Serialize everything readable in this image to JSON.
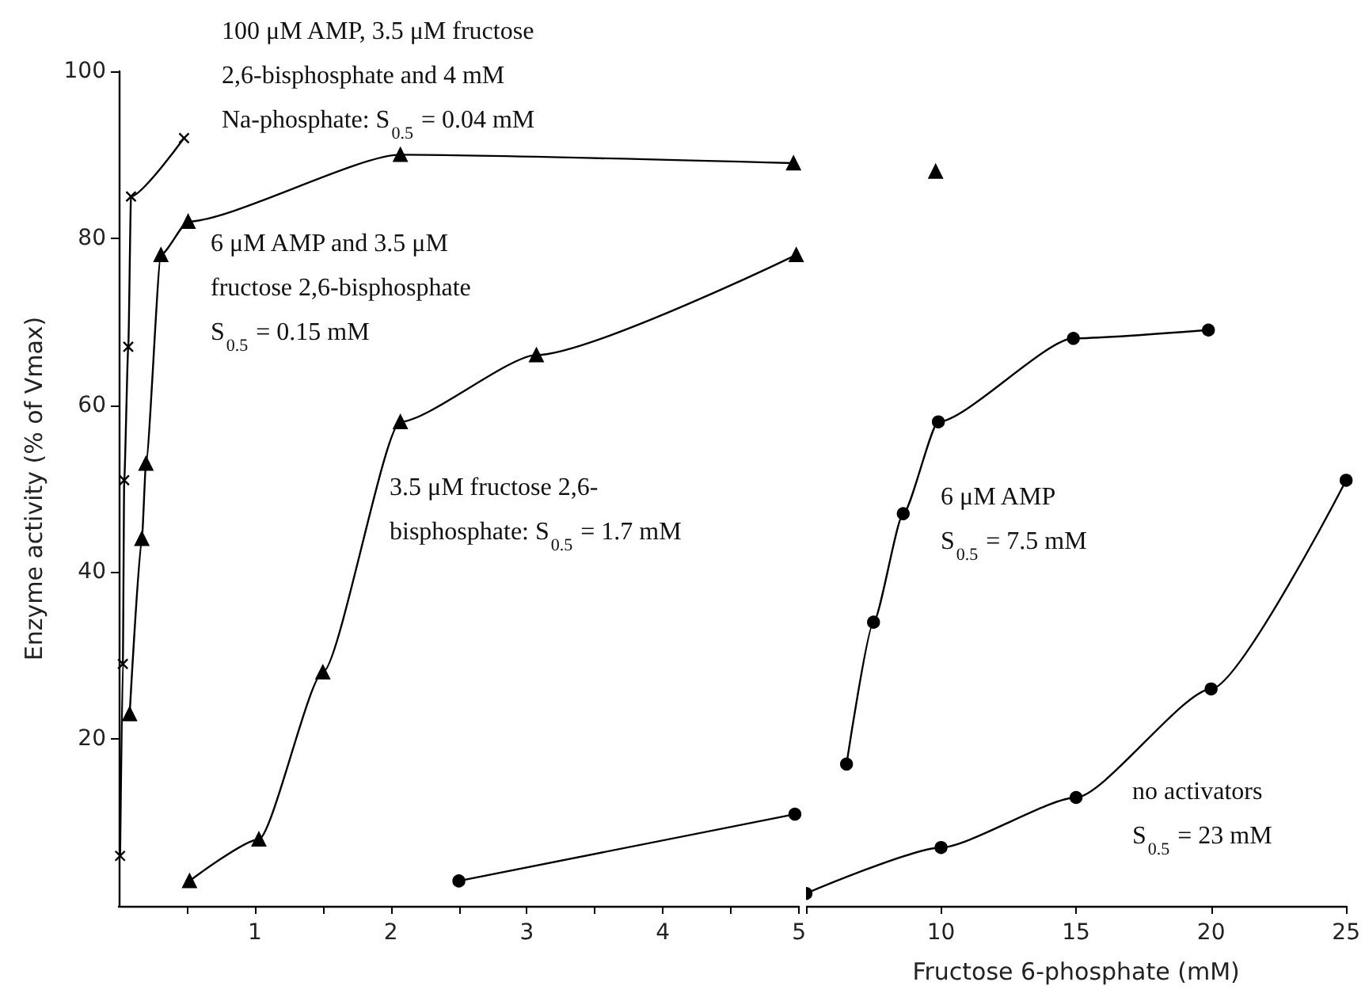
{
  "chart_data": [
    {
      "type": "line",
      "ylabel": "Enzyme activity (% of Vmax)",
      "xlim": [
        0,
        5
      ],
      "ylim": [
        0,
        100
      ],
      "xticks": [
        {
          "value": 0.5,
          "label": null
        },
        1,
        {
          "value": 1.5,
          "label": null
        },
        2,
        {
          "value": 2.5,
          "label": null
        },
        3,
        {
          "value": 3.5,
          "label": null
        },
        4,
        {
          "value": 4.5,
          "label": null
        },
        5
      ],
      "yticks": [
        20,
        40,
        60,
        80,
        100
      ],
      "grid": false,
      "line_style": "solid",
      "series": [
        {
          "color": "#000000",
          "marker": "cross",
          "x": [
            0.01,
            0.03,
            0.04,
            0.07,
            0.09,
            0.48
          ],
          "values": [
            6,
            29,
            51,
            67,
            85,
            92
          ]
        },
        {
          "color": "#000000",
          "marker": "triangle",
          "x": [
            0.08,
            0.17,
            0.2,
            0.31,
            0.51,
            2.07,
            4.96
          ],
          "values": [
            23,
            44,
            53,
            78,
            82,
            90,
            89
          ]
        },
        {
          "color": "#000000",
          "marker": "triangle",
          "x": [
            0.52,
            1.03,
            1.5,
            2.07,
            3.07,
            4.98
          ],
          "values": [
            3,
            8,
            28,
            58,
            66,
            78
          ]
        },
        {
          "color": "#000000",
          "marker": "circle",
          "x": [
            2.5,
            4.97
          ],
          "values": [
            3,
            11
          ]
        }
      ],
      "annotations": [
        "100 μM AMP, 3.5 μM fructose\n2,6-bisphosphate and 4 mM\nNa-phosphate: S$_{0.5}$ = 0.04 mM",
        "6 μM AMP and 3.5 μM\nfructose 2,6-bisphosphate\nS$_{0.5}$ = 0.15 mM",
        "3.5 μM fructose 2,6-\nbisphosphate: S$_{0.5}$ = 1.7 mM"
      ]
    },
    {
      "type": "line",
      "xlabel": "Fructose 6-phosphate (mM)",
      "xlim": [
        5,
        25
      ],
      "ylim": [
        0,
        100
      ],
      "xticks": [
        {
          "value": 5,
          "label": null
        },
        10,
        15,
        20,
        25
      ],
      "tick_labels": "x",
      "grid": false,
      "line_style": "solid",
      "series": [
        {
          "color": "#000000",
          "marker": "triangle",
          "x": [
            9.8
          ],
          "values": [
            88
          ]
        },
        {
          "color": "#000000",
          "marker": "circle",
          "x": [
            6.5,
            7.5,
            8.6,
            9.9,
            14.9,
            19.9
          ],
          "values": [
            17,
            34,
            47,
            58,
            68,
            69
          ]
        },
        {
          "color": "#000000",
          "marker": "circle",
          "x": [
            5,
            10,
            15,
            20,
            25
          ],
          "values": [
            1.5,
            7,
            13,
            26,
            51
          ]
        }
      ],
      "annotations": [
        "6 μM AMP\nS$_{0.5}$ = 7.5 mM",
        "no activators\nS$_{0.5}$ = 23 mM"
      ]
    }
  ]
}
